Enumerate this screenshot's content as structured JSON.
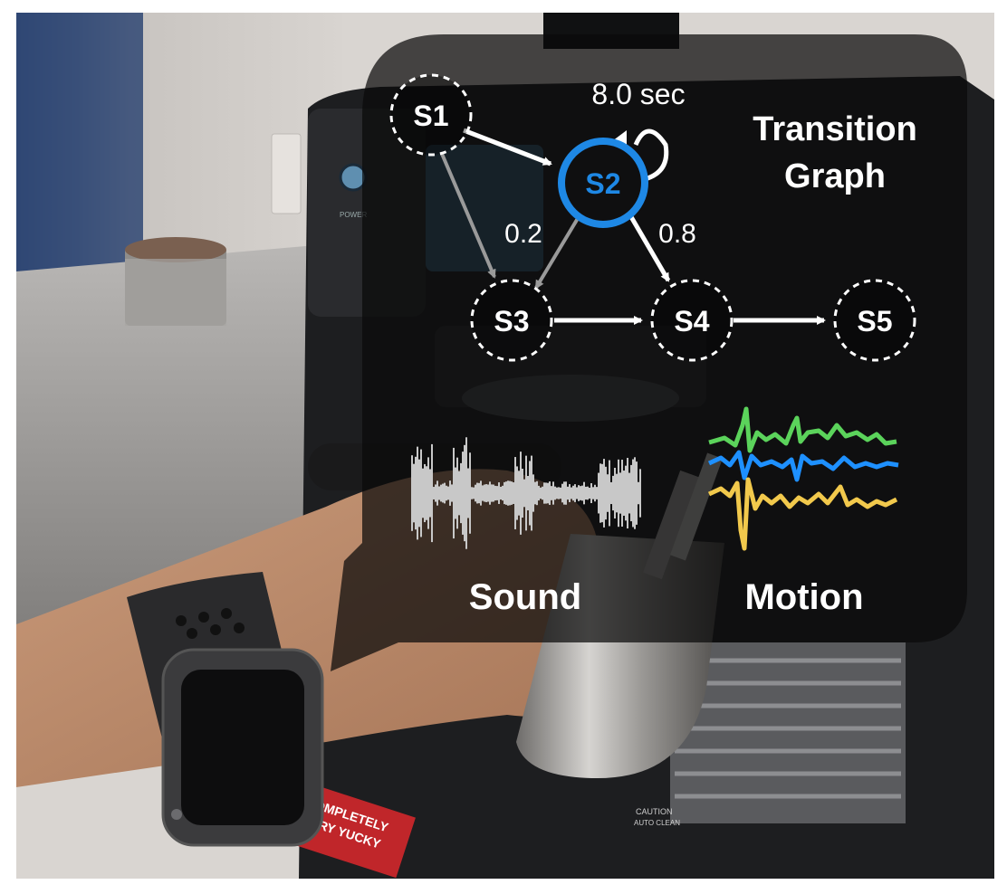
{
  "diagram": {
    "title_line1": "Transition",
    "title_line2": "Graph",
    "nodes": [
      {
        "id": "S1",
        "label": "S1"
      },
      {
        "id": "S2",
        "label": "S2",
        "highlighted": true
      },
      {
        "id": "S3",
        "label": "S3"
      },
      {
        "id": "S4",
        "label": "S4"
      },
      {
        "id": "S5",
        "label": "S5"
      }
    ],
    "self_loop_label": "8.0 sec",
    "edge_labels": {
      "s2_to_s3": "0.2",
      "s2_to_s4": "0.8"
    },
    "sound_label": "Sound",
    "motion_label": "Motion"
  },
  "photo": {
    "sticker_line1": "COMPLETELY",
    "sticker_line2": "VERY YUCKY",
    "tray_label_line1": "CAUTION",
    "tray_label_line2": "AUTO CLEAN",
    "power_label": "POWER"
  },
  "colors": {
    "highlight": "#1E88E5",
    "overlay": "rgba(10,10,10,0.72)",
    "motion_green": "#5BD35B",
    "motion_blue": "#1E90FF",
    "motion_yellow": "#F2C94C",
    "sound_wave": "#c8c8c8"
  }
}
